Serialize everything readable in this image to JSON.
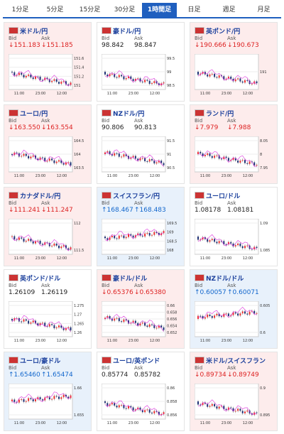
{
  "tabs": [
    "1分足",
    "5分足",
    "15分足",
    "30分足",
    "1時間足",
    "日足",
    "週足",
    "月足"
  ],
  "active_tab": 4,
  "bid_label": "Bid",
  "ask_label": "Ask",
  "cards": [
    {
      "pair": "米ドル/円",
      "bid": "↓151.183",
      "ask": "↓151.185",
      "trend": "down",
      "yticks": [
        151.6,
        151.4,
        151.2,
        151
      ],
      "xticks": [
        "11:00",
        "23:00",
        "12:00"
      ]
    },
    {
      "pair": "豪ドル/円",
      "bid": "98.842",
      "ask": "98.847",
      "trend": "flat",
      "yticks": [
        99.5,
        99,
        98.5
      ],
      "xticks": [
        "11:00",
        "23:00",
        "12:00"
      ]
    },
    {
      "pair": "英ポンド/円",
      "bid": "↓190.666",
      "ask": "↓190.673",
      "trend": "down",
      "yticks": [
        191
      ],
      "xticks": [
        "11:00",
        "23:00",
        "12:00"
      ]
    },
    {
      "pair": "ユーロ/円",
      "bid": "↓163.550",
      "ask": "↓163.554",
      "trend": "down",
      "yticks": [
        164.5,
        164,
        163.5
      ],
      "xticks": [
        "11:00",
        "23:00",
        "12:00"
      ]
    },
    {
      "pair": "NZドル/円",
      "bid": "90.806",
      "ask": "90.813",
      "trend": "flat",
      "yticks": [
        91.5,
        91,
        90.5
      ],
      "xticks": [
        "11:00",
        "23:00",
        "12:00"
      ]
    },
    {
      "pair": "ランド/円",
      "bid": "↓7.979",
      "ask": "↓7.988",
      "trend": "down",
      "yticks": [
        8.05,
        8,
        7.95
      ],
      "xticks": [
        "11:00",
        "23:00",
        "12:00"
      ]
    },
    {
      "pair": "カナダドル/円",
      "bid": "↓111.241",
      "ask": "↓111.247",
      "trend": "down",
      "yticks": [
        112,
        111.5
      ],
      "xticks": [
        "11:00",
        "23:00",
        "12:00"
      ]
    },
    {
      "pair": "スイスフラン/円",
      "bid": "↑168.467",
      "ask": "↑168.483",
      "trend": "up",
      "yticks": [
        169.5,
        169,
        168.5,
        168
      ],
      "xticks": [
        "11:00",
        "23:00",
        "12:00"
      ]
    },
    {
      "pair": "ユーロ/ドル",
      "bid": "1.08178",
      "ask": "1.08181",
      "trend": "flat",
      "yticks": [
        1.09,
        1.085
      ],
      "xticks": [
        "11:00",
        "23:00",
        "12:00"
      ]
    },
    {
      "pair": "英ポンド/ドル",
      "bid": "1.26109",
      "ask": "1.26119",
      "trend": "flat",
      "yticks": [
        1.275,
        1.27,
        1.265,
        1.26
      ],
      "xticks": [
        "11:00",
        "23:00",
        "12:00"
      ]
    },
    {
      "pair": "豪ドル/ドル",
      "bid": "↓0.65376",
      "ask": "↓0.65380",
      "trend": "down",
      "yticks": [
        0.66,
        0.658,
        0.656,
        0.654,
        0.652
      ],
      "xticks": [
        "11:00",
        "23:00",
        "12:00"
      ]
    },
    {
      "pair": "NZドル/ドル",
      "bid": "↑0.60057",
      "ask": "↑0.60071",
      "trend": "up",
      "yticks": [
        0.605,
        0.6
      ],
      "xticks": [
        "11:00",
        "23:00",
        "12:00"
      ]
    },
    {
      "pair": "ユーロ/豪ドル",
      "bid": "↑1.65460",
      "ask": "↑1.65474",
      "trend": "up",
      "yticks": [
        1.66,
        1.655
      ],
      "xticks": [
        "11:00",
        "23:00",
        "12:00"
      ]
    },
    {
      "pair": "ユーロ/英ポンド",
      "bid": "0.85774",
      "ask": "0.85782",
      "trend": "flat",
      "yticks": [
        0.86,
        0.858,
        0.856
      ],
      "xticks": [
        "11:00",
        "23:00",
        "12:00"
      ]
    },
    {
      "pair": "米ドル/スイスフラン",
      "bid": "↓0.89734",
      "ask": "↓0.89749",
      "trend": "down",
      "yticks": [
        0.9,
        0.895
      ],
      "xticks": [
        "11:00",
        "23:00",
        "12:00"
      ]
    }
  ]
}
